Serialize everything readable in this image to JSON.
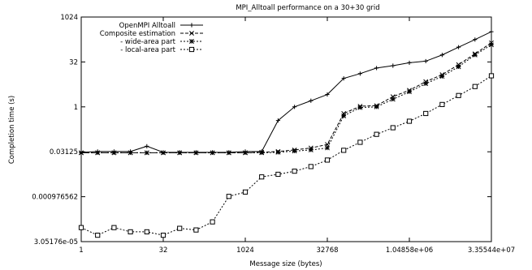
{
  "chart_data": {
    "type": "line",
    "title": "MPI_Alltoall performance on a 30+30 grid",
    "xlabel": "Message size (bytes)",
    "ylabel": "Completion time (s)",
    "x_scale": "log2",
    "y_scale": "log2",
    "xlim": [
      1,
      33554432
    ],
    "ylim": [
      3.05176e-05,
      1024
    ],
    "x_ticks": [
      {
        "value": 1,
        "label": "1"
      },
      {
        "value": 32,
        "label": "32"
      },
      {
        "value": 1024,
        "label": "1024"
      },
      {
        "value": 32768,
        "label": "32768"
      },
      {
        "value": 1048576,
        "label": "1.04858e+06"
      },
      {
        "value": 33554432,
        "label": "3.35544e+07"
      }
    ],
    "y_ticks": [
      {
        "value": 3.05176e-05,
        "label": "3.05176e-05"
      },
      {
        "value": 0.000976562,
        "label": "0.000976562"
      },
      {
        "value": 0.03125,
        "label": "0.03125"
      },
      {
        "value": 1,
        "label": "1"
      },
      {
        "value": 32,
        "label": "32"
      },
      {
        "value": 1024,
        "label": "1024"
      }
    ],
    "grid": false,
    "legend_position": "top-left",
    "x": [
      1,
      2,
      4,
      8,
      16,
      32,
      64,
      128,
      256,
      512,
      1024,
      2048,
      4096,
      8192,
      16384,
      32768,
      65536,
      131072,
      262144,
      524288,
      1048576,
      2097152,
      4194304,
      8388608,
      16777216,
      33554432
    ],
    "series": [
      {
        "name": "OpenMPI Alltoall",
        "marker": "plus",
        "dash": "solid",
        "color": "#000000",
        "values": [
          0.03,
          0.032,
          0.032,
          0.032,
          0.048,
          0.03,
          0.03,
          0.03,
          0.03,
          0.03,
          0.032,
          0.032,
          0.35,
          1.0,
          1.6,
          2.6,
          9.0,
          13.0,
          20.0,
          24.0,
          30.0,
          34.0,
          55.0,
          100.0,
          180.0,
          330.0
        ]
      },
      {
        "name": "Composite estimation",
        "marker": "x",
        "dash": "dashed",
        "color": "#000000",
        "values": [
          0.029,
          0.029,
          0.029,
          0.029,
          0.029,
          0.029,
          0.029,
          0.029,
          0.029,
          0.029,
          0.029,
          0.03,
          0.032,
          0.036,
          0.042,
          0.055,
          0.6,
          1.05,
          1.1,
          2.2,
          3.6,
          7.0,
          12.0,
          26.0,
          60.0,
          140.0
        ]
      },
      {
        "name": "- wide-area part",
        "marker": "star",
        "dash": "dotted",
        "color": "#000000",
        "values": [
          0.029,
          0.029,
          0.029,
          0.029,
          0.029,
          0.029,
          0.029,
          0.029,
          0.029,
          0.029,
          0.029,
          0.029,
          0.03,
          0.033,
          0.036,
          0.042,
          0.5,
          0.95,
          1.0,
          1.8,
          3.2,
          6.0,
          10.5,
          22.0,
          55.0,
          120.0
        ]
      },
      {
        "name": "- local-area part",
        "marker": "square",
        "dash": "dotted",
        "color": "#000000",
        "values": [
          9e-05,
          5e-05,
          9e-05,
          6.5e-05,
          6.5e-05,
          5e-05,
          8.5e-05,
          7.5e-05,
          0.00014,
          0.001,
          0.0014,
          0.0045,
          0.0055,
          0.007,
          0.01,
          0.0165,
          0.035,
          0.065,
          0.12,
          0.2,
          0.33,
          0.6,
          1.2,
          2.4,
          4.8,
          11.0
        ]
      }
    ]
  }
}
